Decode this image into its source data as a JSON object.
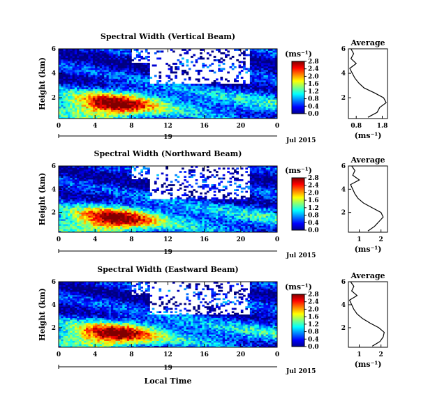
{
  "chart_data": [
    {
      "type": "heatmap",
      "title": "Spectral Width (Vertical Beam)",
      "ylabel": "Height (km)",
      "yticks": [
        "2",
        "4",
        "6"
      ],
      "ylim": [
        0.3,
        6
      ],
      "xticks": [
        "0",
        "4",
        "8",
        "12",
        "16",
        "20",
        "0"
      ],
      "xlim": [
        0,
        24
      ],
      "date_marker": "19",
      "date_label": "Jul 2015",
      "colorbar": {
        "unit": "(ms⁻¹)",
        "ticks": [
          "0.0",
          "0.4",
          "0.8",
          "1.2",
          "1.6",
          "2.0",
          "2.4",
          "2.8"
        ],
        "range": [
          0,
          2.8
        ]
      },
      "profile": {
        "title": "Average",
        "xlabel": "(ms⁻¹)",
        "xticks": [
          "0.8",
          "1.8"
        ],
        "xlim": [
          0.5,
          2.0
        ],
        "yticks": [
          "2",
          "4",
          "6"
        ],
        "height": [
          0.4,
          0.8,
          1.2,
          1.6,
          2.0,
          2.4,
          2.8,
          3.2,
          3.6,
          4.0,
          4.4,
          4.8,
          5.2,
          5.6,
          6.0
        ],
        "width": [
          1.25,
          1.6,
          1.7,
          1.95,
          1.85,
          1.5,
          1.1,
          0.9,
          0.75,
          0.65,
          0.55,
          0.8,
          0.6,
          0.7,
          0.6
        ]
      }
    },
    {
      "type": "heatmap",
      "title": "Spectral Width (Northward Beam)",
      "ylabel": "Height (km)",
      "yticks": [
        "2",
        "4",
        "6"
      ],
      "ylim": [
        0.3,
        6
      ],
      "xticks": [
        "0",
        "4",
        "8",
        "12",
        "16",
        "20",
        "0"
      ],
      "xlim": [
        0,
        24
      ],
      "date_marker": "19",
      "date_label": "Jul 2015",
      "colorbar": {
        "unit": "(ms⁻¹)",
        "ticks": [
          "0.0",
          "0.4",
          "0.8",
          "1.2",
          "1.6",
          "2.0",
          "2.4",
          "2.8"
        ],
        "range": [
          0,
          2.8
        ]
      },
      "profile": {
        "title": "Average",
        "xlabel": "(ms⁻¹)",
        "xticks": [
          "1",
          "2"
        ],
        "xlim": [
          0.5,
          2.3
        ],
        "yticks": [
          "2",
          "4",
          "6"
        ],
        "height": [
          0.4,
          0.8,
          1.2,
          1.6,
          2.0,
          2.4,
          2.8,
          3.2,
          3.6,
          4.0,
          4.4,
          4.8,
          5.2,
          5.6,
          6.0
        ],
        "width": [
          1.4,
          1.7,
          1.9,
          2.1,
          2.0,
          1.6,
          1.2,
          0.95,
          0.8,
          0.7,
          0.6,
          1.0,
          0.7,
          0.8,
          0.65
        ]
      }
    },
    {
      "type": "heatmap",
      "title": "Spectral Width (Eastward Beam)",
      "ylabel": "Height (km)",
      "yticks": [
        "2",
        "4",
        "6"
      ],
      "ylim": [
        0.3,
        6
      ],
      "xticks": [
        "0",
        "4",
        "8",
        "12",
        "16",
        "20",
        "0"
      ],
      "xlim": [
        0,
        24
      ],
      "date_marker": "19",
      "date_label": "Jul 2015",
      "xlabel": "Local Time",
      "colorbar": {
        "unit": "(ms⁻¹)",
        "ticks": [
          "0.0",
          "0.4",
          "0.8",
          "1.2",
          "1.6",
          "2.0",
          "2.4",
          "2.8"
        ],
        "range": [
          0,
          2.8
        ]
      },
      "profile": {
        "title": "Average",
        "xlabel": "(ms⁻¹)",
        "xticks": [
          "1",
          "2"
        ],
        "xlim": [
          0.5,
          2.3
        ],
        "yticks": [
          "2",
          "4",
          "6"
        ],
        "height": [
          0.4,
          0.8,
          1.2,
          1.6,
          2.0,
          2.4,
          2.8,
          3.2,
          3.6,
          4.0,
          4.4,
          4.8,
          5.2,
          5.6,
          6.0
        ],
        "width": [
          1.6,
          1.95,
          2.1,
          2.15,
          1.9,
          1.5,
          1.15,
          0.9,
          0.75,
          0.65,
          0.55,
          0.9,
          0.65,
          0.75,
          0.6
        ]
      }
    }
  ]
}
